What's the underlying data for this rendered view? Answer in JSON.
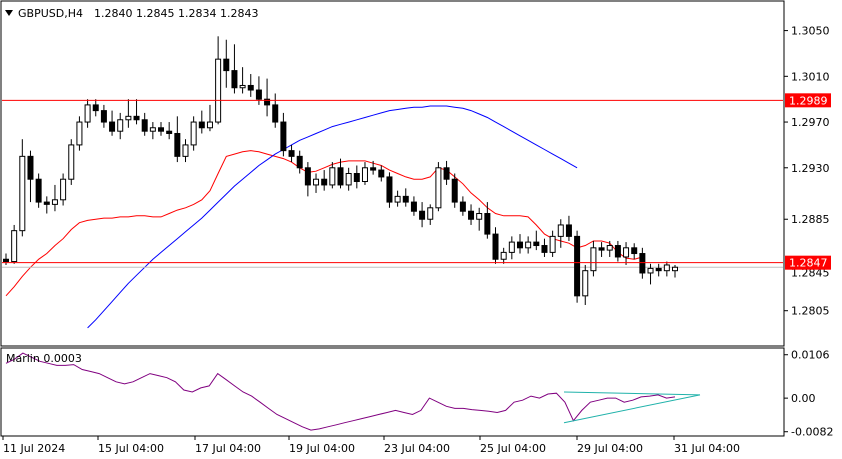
{
  "header": {
    "symbol_label": "GBPUSD,H4",
    "quote": "1.2840 1.2845 1.2834 1.2843"
  },
  "indicator": {
    "label": "Marlin 0.0003",
    "ticks": [
      "0.0106",
      "0.00",
      "-0.0082"
    ]
  },
  "chart_data": {
    "type": "candlestick",
    "symbol": "GBPUSD",
    "timeframe": "H4",
    "y_axis": {
      "range": [
        1.2775,
        1.3075
      ],
      "ticks": [
        {
          "value": 1.305,
          "label": "1.3050"
        },
        {
          "value": 1.301,
          "label": "1.3010"
        },
        {
          "value": 1.297,
          "label": "1.2970"
        },
        {
          "value": 1.293,
          "label": "1.2930"
        },
        {
          "value": 1.2885,
          "label": "1.2885"
        },
        {
          "value": 1.2805,
          "label": "1.2805"
        }
      ],
      "overlapped_tick": "1.2845"
    },
    "x_axis": {
      "labels": [
        {
          "bar": 0,
          "label": "11 Jul 2024"
        },
        {
          "bar": 24,
          "label": "15 Jul 04:00"
        },
        {
          "bar": 48,
          "label": "17 Jul 04:00"
        },
        {
          "bar": 71,
          "label": "19 Jul 04:00"
        },
        {
          "bar": 95,
          "label": "23 Jul 04:00"
        },
        {
          "bar": 119,
          "label": "25 Jul 04:00"
        },
        {
          "bar": 143,
          "label": "29 Jul 04:00"
        },
        {
          "bar": 167,
          "label": "31 Jul 04:00"
        }
      ]
    },
    "horizontal_levels": [
      {
        "value": 1.2989,
        "label": "1.2989",
        "color": "#ff0000"
      },
      {
        "value": 1.2847,
        "label": "1.2847",
        "color": "#ff0000"
      }
    ],
    "bid_line": 1.2843,
    "candles": [
      [
        1.285,
        1.2855,
        1.2845,
        1.2848
      ],
      [
        1.2848,
        1.288,
        1.2846,
        1.2875
      ],
      [
        1.2875,
        1.2955,
        1.287,
        1.294
      ],
      [
        1.294,
        1.2945,
        1.29,
        1.292
      ],
      [
        1.292,
        1.2925,
        1.2895,
        1.29
      ],
      [
        1.29,
        1.2905,
        1.289,
        1.2898
      ],
      [
        1.2898,
        1.2915,
        1.2892,
        1.2902
      ],
      [
        1.2902,
        1.2925,
        1.2897,
        1.292
      ],
      [
        1.292,
        1.2955,
        1.2915,
        1.295
      ],
      [
        1.295,
        1.2975,
        1.2945,
        1.297
      ],
      [
        1.297,
        1.299,
        1.2965,
        1.2985
      ],
      [
        1.2985,
        1.299,
        1.2975,
        1.298
      ],
      [
        1.298,
        1.2985,
        1.2965,
        1.297
      ],
      [
        1.297,
        1.298,
        1.2958,
        1.2962
      ],
      [
        1.2962,
        1.2978,
        1.2955,
        1.2972
      ],
      [
        1.2972,
        1.299,
        1.2965,
        1.2975
      ],
      [
        1.2975,
        1.299,
        1.2968,
        1.2972
      ],
      [
        1.2972,
        1.2978,
        1.2958,
        1.2962
      ],
      [
        1.2962,
        1.297,
        1.2955,
        1.2965
      ],
      [
        1.2965,
        1.297,
        1.2958,
        1.2962
      ],
      [
        1.2962,
        1.297,
        1.2955,
        1.296
      ],
      [
        1.296,
        1.2975,
        1.2935,
        1.294
      ],
      [
        1.294,
        1.2955,
        1.2935,
        1.295
      ],
      [
        1.295,
        1.2975,
        1.2945,
        1.297
      ],
      [
        1.297,
        1.298,
        1.296,
        1.2965
      ],
      [
        1.2965,
        1.2985,
        1.2962,
        1.297
      ],
      [
        1.297,
        1.3045,
        1.2968,
        1.3025
      ],
      [
        1.3025,
        1.3042,
        1.3,
        1.3015
      ],
      [
        1.3015,
        1.3038,
        1.2995,
        1.3
      ],
      [
        1.3,
        1.3018,
        1.2995,
        1.3002
      ],
      [
        1.3002,
        1.3012,
        1.2992,
        1.2998
      ],
      [
        1.2998,
        1.301,
        1.2985,
        1.299
      ],
      [
        1.299,
        1.3008,
        1.2975,
        1.2985
      ],
      [
        1.2985,
        1.2995,
        1.2965,
        1.297
      ],
      [
        1.297,
        1.2978,
        1.294,
        1.2945
      ],
      [
        1.2945,
        1.295,
        1.2935,
        1.294
      ],
      [
        1.294,
        1.2945,
        1.2925,
        1.293
      ],
      [
        1.293,
        1.2935,
        1.2905,
        1.2915
      ],
      [
        1.2915,
        1.2925,
        1.2908,
        1.292
      ],
      [
        1.292,
        1.2928,
        1.291,
        1.2915
      ],
      [
        1.2915,
        1.2935,
        1.2912,
        1.293
      ],
      [
        1.293,
        1.2938,
        1.2912,
        1.2915
      ],
      [
        1.2915,
        1.293,
        1.291,
        1.2925
      ],
      [
        1.2925,
        1.2932,
        1.2912,
        1.2918
      ],
      [
        1.2918,
        1.2935,
        1.2915,
        1.293
      ],
      [
        1.293,
        1.2936,
        1.2924,
        1.2928
      ],
      [
        1.2928,
        1.2932,
        1.2918,
        1.2922
      ],
      [
        1.2922,
        1.2926,
        1.2895,
        1.29
      ],
      [
        1.29,
        1.291,
        1.2896,
        1.2905
      ],
      [
        1.2905,
        1.2912,
        1.2896,
        1.29
      ],
      [
        1.29,
        1.2905,
        1.2888,
        1.2892
      ],
      [
        1.2892,
        1.29,
        1.2878,
        1.2885
      ],
      [
        1.2885,
        1.2898,
        1.288,
        1.2895
      ],
      [
        1.2895,
        1.2935,
        1.2892,
        1.293
      ],
      [
        1.293,
        1.2936,
        1.2915,
        1.292
      ],
      [
        1.292,
        1.2925,
        1.2895,
        1.29
      ],
      [
        1.29,
        1.2905,
        1.2888,
        1.2892
      ],
      [
        1.2892,
        1.2898,
        1.288,
        1.2885
      ],
      [
        1.2885,
        1.2895,
        1.2875,
        1.289
      ],
      [
        1.289,
        1.29,
        1.2868,
        1.2872
      ],
      [
        1.2872,
        1.2878,
        1.2846,
        1.285
      ],
      [
        1.285,
        1.286,
        1.2846,
        1.2856
      ],
      [
        1.2856,
        1.287,
        1.285,
        1.2865
      ],
      [
        1.2865,
        1.2872,
        1.2855,
        1.286
      ],
      [
        1.286,
        1.287,
        1.2855,
        1.2865
      ],
      [
        1.2865,
        1.2875,
        1.2858,
        1.2862
      ],
      [
        1.2862,
        1.2868,
        1.2852,
        1.2856
      ],
      [
        1.2856,
        1.2875,
        1.2852,
        1.287
      ],
      [
        1.287,
        1.2885,
        1.286,
        1.288
      ],
      [
        1.288,
        1.2888,
        1.2866,
        1.287
      ],
      [
        1.287,
        1.2875,
        1.2812,
        1.2818
      ],
      [
        1.2818,
        1.2845,
        1.281,
        1.284
      ],
      [
        1.284,
        1.2866,
        1.2835,
        1.286
      ],
      [
        1.286,
        1.2865,
        1.2852,
        1.2858
      ],
      [
        1.2858,
        1.2866,
        1.2852,
        1.2862
      ],
      [
        1.2862,
        1.2866,
        1.2848,
        1.2852
      ],
      [
        1.2852,
        1.2865,
        1.2845,
        1.286
      ],
      [
        1.286,
        1.2864,
        1.285,
        1.2855
      ],
      [
        1.2855,
        1.286,
        1.2833,
        1.2838
      ],
      [
        1.2838,
        1.2846,
        1.2828,
        1.2842
      ],
      [
        1.2842,
        1.2846,
        1.2835,
        1.284
      ],
      [
        1.284,
        1.2848,
        1.2835,
        1.2845
      ],
      [
        1.284,
        1.2845,
        1.2834,
        1.2843
      ]
    ],
    "series": [
      {
        "type": "line",
        "color": "#ff0000",
        "values": [
          1.2818,
          1.2826,
          1.2835,
          1.2843,
          1.285,
          1.2855,
          1.2862,
          1.2868,
          1.2876,
          1.2882,
          1.2884,
          1.2885,
          1.2886,
          1.2886,
          1.2887,
          1.2887,
          1.2888,
          1.2888,
          1.2887,
          1.2887,
          1.289,
          1.2893,
          1.2895,
          1.2898,
          1.2902,
          1.291,
          1.2925,
          1.294,
          1.2942,
          1.2944,
          1.2945,
          1.2944,
          1.2942,
          1.294,
          1.2938,
          1.2935,
          1.293,
          1.2926,
          1.2927,
          1.293,
          1.2933,
          1.2935,
          1.2936,
          1.2936,
          1.2936,
          1.2934,
          1.2932,
          1.2928,
          1.2925,
          1.2922,
          1.292,
          1.292,
          1.2922,
          1.293,
          1.2928,
          1.2922,
          1.2916,
          1.2908,
          1.2902,
          1.2895,
          1.289,
          1.2888,
          1.2888,
          1.2888,
          1.2887,
          1.288,
          1.2872,
          1.2868,
          1.2866,
          1.2864,
          1.286,
          1.2862,
          1.2866,
          1.2866,
          1.2864,
          1.2856,
          1.2851,
          1.285,
          1.2852
        ]
      },
      {
        "type": "line",
        "color": "#0000ff",
        "values": [
          null,
          null,
          null,
          null,
          null,
          null,
          null,
          null,
          null,
          null,
          1.279,
          1.2797,
          1.2805,
          1.2813,
          1.2821,
          1.2829,
          1.2836,
          1.2843,
          1.285,
          1.2856,
          1.2862,
          1.2868,
          1.2874,
          1.288,
          1.2886,
          1.2893,
          1.29,
          1.2907,
          1.2914,
          1.292,
          1.2926,
          1.2932,
          1.2937,
          1.2942,
          1.2946,
          1.295,
          1.2954,
          1.2957,
          1.296,
          1.2963,
          1.2966,
          1.2968,
          1.297,
          1.2972,
          1.2974,
          1.2976,
          1.2978,
          1.298,
          1.2981,
          1.2982,
          1.2983,
          1.2983,
          1.2984,
          1.2984,
          1.2984,
          1.2983,
          1.2982,
          1.298,
          1.2977,
          1.2974,
          1.297,
          1.2966,
          1.2962,
          1.2958,
          1.2954,
          1.295,
          1.2946,
          1.2942,
          1.2938,
          1.2934,
          1.293
        ]
      }
    ],
    "indicator_series": {
      "name": "Marlin",
      "color": "#800080",
      "range": [
        -0.009,
        0.012
      ],
      "values": [
        0.0085,
        0.0095,
        0.011,
        0.01,
        0.009,
        0.0085,
        0.008,
        0.008,
        0.0082,
        0.007,
        0.0065,
        0.006,
        0.005,
        0.004,
        0.0035,
        0.004,
        0.005,
        0.006,
        0.0055,
        0.005,
        0.004,
        0.002,
        0.0015,
        0.0025,
        0.003,
        0.006,
        0.0045,
        0.003,
        0.0015,
        0.0005,
        -0.001,
        -0.0025,
        -0.004,
        -0.005,
        -0.006,
        -0.007,
        -0.0078,
        -0.0075,
        -0.007,
        -0.0065,
        -0.006,
        -0.0055,
        -0.005,
        -0.0045,
        -0.004,
        -0.0035,
        -0.003,
        -0.0035,
        -0.004,
        -0.003,
        0.0,
        -0.001,
        -0.002,
        -0.0025,
        -0.0025,
        -0.0028,
        -0.003,
        -0.0032,
        -0.0035,
        -0.003,
        -0.001,
        -0.0005,
        0.0005,
        0.0,
        0.001,
        0.0012,
        -0.001,
        -0.0055,
        -0.003,
        -0.001,
        -0.0005,
        0.0,
        0.0,
        -0.001,
        -0.0005,
        0.0003,
        0.0005,
        0.0008,
        0.0,
        0.0003
      ]
    },
    "indicator_trendlines": [
      {
        "from": [
          137,
          0.0015
        ],
        "to": [
          171,
          0.0008
        ],
        "color": "#20b2aa"
      },
      {
        "from": [
          137,
          -0.006
        ],
        "to": [
          171,
          0.0008
        ],
        "color": "#20b2aa"
      }
    ]
  }
}
